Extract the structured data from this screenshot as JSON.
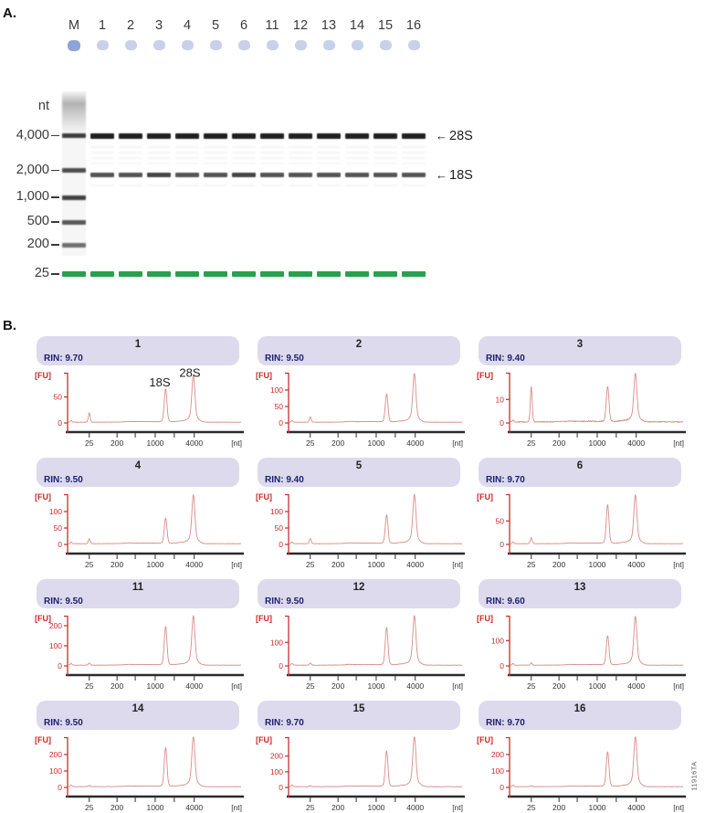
{
  "figure": {
    "panel_a_label": "A.",
    "panel_b_label": "B.",
    "watermark": "11916TA"
  },
  "panel_a": {
    "lane_labels": [
      "M",
      "1",
      "2",
      "3",
      "4",
      "5",
      "6",
      "11",
      "12",
      "13",
      "14",
      "15",
      "16"
    ],
    "units_label": "nt",
    "ladder": [
      {
        "label": "4,000"
      },
      {
        "label": "2,000"
      },
      {
        "label": "1,000"
      },
      {
        "label": "500"
      },
      {
        "label": "200"
      },
      {
        "label": "25"
      }
    ],
    "band_annotations": [
      {
        "arrow": "←",
        "label": "28S"
      },
      {
        "arrow": "←",
        "label": "18S"
      }
    ],
    "colors": {
      "well_sample": "#c9d0ea",
      "well_marker": "#8ea3d8",
      "green_band": "#2aa04e",
      "band_28s": "#202020",
      "band_18s": "#565656"
    }
  },
  "panel_b": {
    "y_axis_label": "[FU]",
    "x_axis_unit": "[nt]",
    "x_tick_labels": [
      "25",
      "200",
      "1000",
      "4000"
    ],
    "peak_labels": {
      "s18": "18S",
      "s28": "28S"
    },
    "colors": {
      "header_bg": "#dcdaec",
      "rin_text": "#1d1d70",
      "axis": "#cc2a2a",
      "trace": "#d88c86",
      "x_axis": "#2b2b2b"
    }
  },
  "chart_data": [
    {
      "type": "line",
      "title": "1",
      "rin": 9.7,
      "rin_label": "RIN: 9.70",
      "xlabel": "[nt]",
      "ylabel": "[FU]",
      "x_ticks": [
        25,
        200,
        1000,
        4000
      ],
      "x_minor_ticks": [
        500,
        2000
      ],
      "yticks": [
        0,
        50
      ],
      "ymax": 95,
      "peaks": {
        "marker_25nt": 18,
        "rRNA_18S": 62,
        "rRNA_28S": 86
      },
      "annotated": true
    },
    {
      "type": "line",
      "title": "2",
      "rin": 9.5,
      "rin_label": "RIN: 9.50",
      "xlabel": "[nt]",
      "ylabel": "[FU]",
      "x_ticks": [
        25,
        200,
        1000,
        4000
      ],
      "x_minor_ticks": [
        500,
        2000
      ],
      "yticks": [
        0,
        50,
        100
      ],
      "ymax": 150,
      "peaks": {
        "marker_25nt": 16,
        "rRNA_18S": 82,
        "rRNA_28S": 140
      },
      "annotated": false
    },
    {
      "type": "line",
      "title": "3",
      "rin": 9.4,
      "rin_label": "RIN: 9.40",
      "xlabel": "[nt]",
      "ylabel": "[FU]",
      "x_ticks": [
        25,
        200,
        1000,
        4000
      ],
      "x_minor_ticks": [
        500,
        2000
      ],
      "yticks": [
        0,
        10
      ],
      "ymax": 21,
      "peaks": {
        "marker_25nt": 15,
        "rRNA_18S": 14.5,
        "rRNA_28S": 19.5
      },
      "annotated": false
    },
    {
      "type": "line",
      "title": "4",
      "rin": 9.5,
      "rin_label": "RIN: 9.50",
      "xlabel": "[nt]",
      "ylabel": "[FU]",
      "x_ticks": [
        25,
        200,
        1000,
        4000
      ],
      "x_minor_ticks": [
        500,
        2000
      ],
      "yticks": [
        0,
        50,
        100
      ],
      "ymax": 150,
      "peaks": {
        "marker_25nt": 15,
        "rRNA_18S": 75,
        "rRNA_28S": 140
      },
      "annotated": false
    },
    {
      "type": "line",
      "title": "5",
      "rin": 9.4,
      "rin_label": "RIN: 9.40",
      "xlabel": "[nt]",
      "ylabel": "[FU]",
      "x_ticks": [
        25,
        200,
        1000,
        4000
      ],
      "x_minor_ticks": [
        500,
        2000
      ],
      "yticks": [
        0,
        50,
        100
      ],
      "ymax": 150,
      "peaks": {
        "marker_25nt": 16,
        "rRNA_18S": 84,
        "rRNA_28S": 142
      },
      "annotated": false
    },
    {
      "type": "line",
      "title": "6",
      "rin": 9.7,
      "rin_label": "RIN: 9.70",
      "xlabel": "[nt]",
      "ylabel": "[FU]",
      "x_ticks": [
        25,
        200,
        1000,
        4000
      ],
      "x_minor_ticks": [
        500,
        2000
      ],
      "yticks": [
        0,
        50
      ],
      "ymax": 105,
      "peaks": {
        "marker_25nt": 13,
        "rRNA_18S": 80,
        "rRNA_28S": 98
      },
      "annotated": false
    },
    {
      "type": "line",
      "title": "11",
      "rin": 9.5,
      "rin_label": "RIN: 9.50",
      "xlabel": "[nt]",
      "ylabel": "[FU]",
      "x_ticks": [
        25,
        200,
        1000,
        4000
      ],
      "x_minor_ticks": [
        500,
        2000
      ],
      "yticks": [
        0,
        100,
        200
      ],
      "ymax": 245,
      "peaks": {
        "marker_25nt": 11,
        "rRNA_18S": 185,
        "rRNA_28S": 232
      },
      "annotated": false
    },
    {
      "type": "line",
      "title": "12",
      "rin": 9.5,
      "rin_label": "RIN: 9.50",
      "xlabel": "[nt]",
      "ylabel": "[FU]",
      "x_ticks": [
        25,
        200,
        1000,
        4000
      ],
      "x_minor_ticks": [
        500,
        2000
      ],
      "yticks": [
        0,
        100
      ],
      "ymax": 210,
      "peaks": {
        "marker_25nt": 9,
        "rRNA_18S": 155,
        "rRNA_28S": 200
      },
      "annotated": false
    },
    {
      "type": "line",
      "title": "13",
      "rin": 9.6,
      "rin_label": "RIN: 9.60",
      "xlabel": "[nt]",
      "ylabel": "[FU]",
      "x_ticks": [
        25,
        200,
        1000,
        4000
      ],
      "x_minor_ticks": [
        500,
        2000
      ],
      "yticks": [
        0,
        100
      ],
      "ymax": 195,
      "peaks": {
        "marker_25nt": 9,
        "rRNA_18S": 112,
        "rRNA_28S": 182
      },
      "annotated": false
    },
    {
      "type": "line",
      "title": "14",
      "rin": 9.5,
      "rin_label": "RIN: 9.50",
      "xlabel": "[nt]",
      "ylabel": "[FU]",
      "x_ticks": [
        25,
        200,
        1000,
        4000
      ],
      "x_minor_ticks": [
        500,
        2000
      ],
      "yticks": [
        0,
        100,
        200
      ],
      "ymax": 300,
      "peaks": {
        "marker_25nt": 8,
        "rRNA_18S": 230,
        "rRNA_28S": 288
      },
      "annotated": false
    },
    {
      "type": "line",
      "title": "15",
      "rin": 9.7,
      "rin_label": "RIN: 9.70",
      "xlabel": "[nt]",
      "ylabel": "[FU]",
      "x_ticks": [
        25,
        200,
        1000,
        4000
      ],
      "x_minor_ticks": [
        500,
        2000
      ],
      "yticks": [
        0,
        100,
        200
      ],
      "ymax": 315,
      "peaks": {
        "marker_25nt": 6,
        "rRNA_18S": 220,
        "rRNA_28S": 305
      },
      "annotated": false
    },
    {
      "type": "line",
      "title": "16",
      "rin": 9.7,
      "rin_label": "RIN: 9.70",
      "xlabel": "[nt]",
      "ylabel": "[FU]",
      "x_ticks": [
        25,
        200,
        1000,
        4000
      ],
      "x_minor_ticks": [
        500,
        2000
      ],
      "yticks": [
        0,
        100,
        200
      ],
      "ymax": 300,
      "peaks": {
        "marker_25nt": 6,
        "rRNA_18S": 205,
        "rRNA_28S": 290
      },
      "annotated": false
    }
  ]
}
